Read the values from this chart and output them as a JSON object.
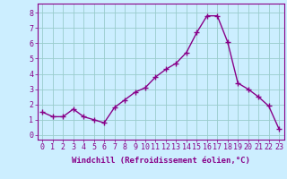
{
  "x": [
    0,
    1,
    2,
    3,
    4,
    5,
    6,
    7,
    8,
    9,
    10,
    11,
    12,
    13,
    14,
    15,
    16,
    17,
    18,
    19,
    20,
    21,
    22,
    23
  ],
  "y": [
    1.5,
    1.2,
    1.2,
    1.7,
    1.2,
    1.0,
    0.8,
    1.8,
    2.3,
    2.8,
    3.1,
    3.8,
    4.3,
    4.7,
    5.4,
    6.7,
    7.8,
    7.8,
    6.1,
    3.4,
    3.0,
    2.5,
    1.9,
    0.4
  ],
  "line_color": "#880088",
  "marker": "+",
  "markersize": 4,
  "linewidth": 1.0,
  "xlabel": "Windchill (Refroidissement éolien,°C)",
  "xlabel_fontsize": 6.5,
  "ylabel_ticks": [
    0,
    1,
    2,
    3,
    4,
    5,
    6,
    7,
    8
  ],
  "xtick_labels": [
    "0",
    "1",
    "2",
    "3",
    "4",
    "5",
    "6",
    "7",
    "8",
    "9",
    "10",
    "11",
    "12",
    "13",
    "14",
    "15",
    "16",
    "17",
    "18",
    "19",
    "20",
    "21",
    "22",
    "23"
  ],
  "ylim": [
    -0.3,
    8.6
  ],
  "xlim": [
    -0.5,
    23.5
  ],
  "bg_color": "#cceeff",
  "grid_color": "#99cccc",
  "tick_color": "#880088",
  "tick_fontsize": 6
}
